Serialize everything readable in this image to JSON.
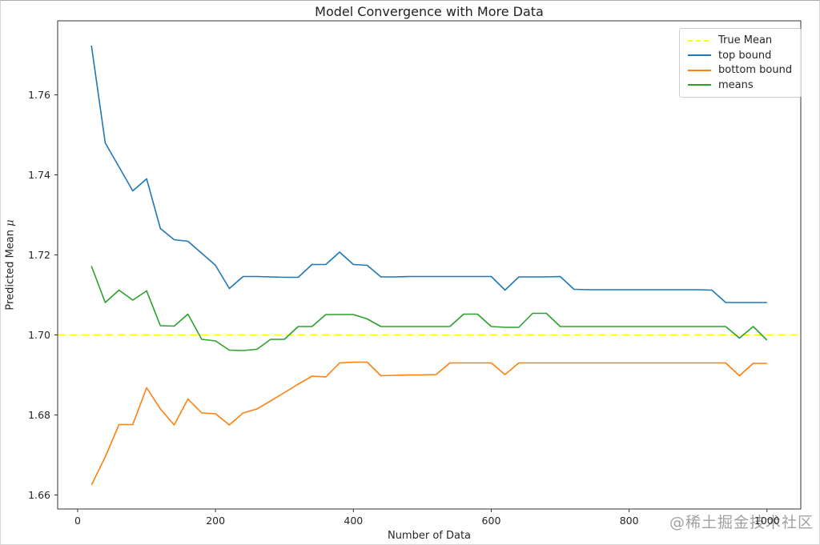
{
  "watermark": {
    "text": "@稀土掘金技术社区"
  },
  "chart_data": {
    "type": "line",
    "title": "Model Convergence with More Data",
    "xlabel": "Number of Data",
    "ylabel": "Predicted Mean μ",
    "ylabel_prefix": "Predicted Mean ",
    "ylabel_mu": "μ",
    "grid": false,
    "legend_position": "top-right",
    "xlim": [
      -29,
      1049
    ],
    "ylim": [
      1.6565,
      1.7785
    ],
    "x_ticks": [
      0,
      200,
      400,
      600,
      800,
      1000
    ],
    "y_ticks": [
      1.66,
      1.68,
      1.7,
      1.72,
      1.74,
      1.76
    ],
    "axis_color": "#333333",
    "true_mean": {
      "label": "True Mean",
      "value": 1.7,
      "color": "#ffff00",
      "style": "dashed"
    },
    "x": [
      20,
      40,
      60,
      80,
      100,
      120,
      140,
      160,
      180,
      200,
      220,
      240,
      260,
      280,
      300,
      320,
      340,
      360,
      380,
      400,
      420,
      440,
      460,
      480,
      500,
      520,
      540,
      560,
      580,
      600,
      620,
      640,
      660,
      680,
      700,
      720,
      740,
      760,
      780,
      800,
      820,
      840,
      860,
      880,
      900,
      920,
      940,
      960,
      980,
      1000
    ],
    "series": [
      {
        "name": "top bound",
        "color": "#1f77b4",
        "values": [
          1.7723,
          1.748,
          1.742,
          1.736,
          1.739,
          1.7266,
          1.7238,
          1.7234,
          1.7204,
          1.7174,
          1.7116,
          1.7146,
          1.7146,
          1.7145,
          1.7144,
          1.7144,
          1.7176,
          1.7176,
          1.7207,
          1.7176,
          1.7174,
          1.7145,
          1.7145,
          1.7146,
          1.7146,
          1.7146,
          1.7146,
          1.7146,
          1.7146,
          1.7146,
          1.7112,
          1.7145,
          1.7145,
          1.7145,
          1.7146,
          1.7114,
          1.7113,
          1.7113,
          1.7113,
          1.7113,
          1.7113,
          1.7113,
          1.7113,
          1.7113,
          1.7113,
          1.7112,
          1.7081,
          1.7081,
          1.7081,
          1.7081
        ]
      },
      {
        "name": "bottom bound",
        "color": "#ff7f0e",
        "values": [
          1.6625,
          1.6695,
          1.6776,
          1.6776,
          1.6868,
          1.6815,
          1.6775,
          1.684,
          1.6805,
          1.6803,
          1.6775,
          1.6805,
          1.6815,
          1.6835,
          1.6856,
          1.6877,
          1.6897,
          1.6895,
          1.693,
          1.6932,
          1.6932,
          1.6898,
          1.6899,
          1.69,
          1.69,
          1.6901,
          1.693,
          1.693,
          1.693,
          1.693,
          1.6901,
          1.693,
          1.693,
          1.693,
          1.693,
          1.693,
          1.693,
          1.693,
          1.693,
          1.693,
          1.693,
          1.693,
          1.693,
          1.693,
          1.693,
          1.693,
          1.693,
          1.6898,
          1.6929,
          1.6929
        ]
      },
      {
        "name": "means",
        "color": "#2ca02c",
        "values": [
          1.7172,
          1.7081,
          1.7112,
          1.7087,
          1.711,
          1.7023,
          1.7022,
          1.7052,
          1.6989,
          1.6985,
          1.6962,
          1.6961,
          1.6964,
          1.6989,
          1.6989,
          1.7021,
          1.7021,
          1.7051,
          1.7051,
          1.7051,
          1.704,
          1.7021,
          1.7021,
          1.7021,
          1.7021,
          1.7021,
          1.7021,
          1.7052,
          1.7052,
          1.7021,
          1.7019,
          1.7019,
          1.7054,
          1.7054,
          1.7021,
          1.7021,
          1.7021,
          1.7021,
          1.7021,
          1.7021,
          1.7021,
          1.7021,
          1.7021,
          1.7021,
          1.7021,
          1.7021,
          1.7021,
          1.6992,
          1.7021,
          1.6987
        ]
      }
    ],
    "legend": [
      {
        "label": "True Mean",
        "color": "#ffff00",
        "dashed": true
      },
      {
        "label": "top bound",
        "color": "#1f77b4",
        "dashed": false
      },
      {
        "label": "bottom bound",
        "color": "#ff7f0e",
        "dashed": false
      },
      {
        "label": "means",
        "color": "#2ca02c",
        "dashed": false
      }
    ]
  }
}
